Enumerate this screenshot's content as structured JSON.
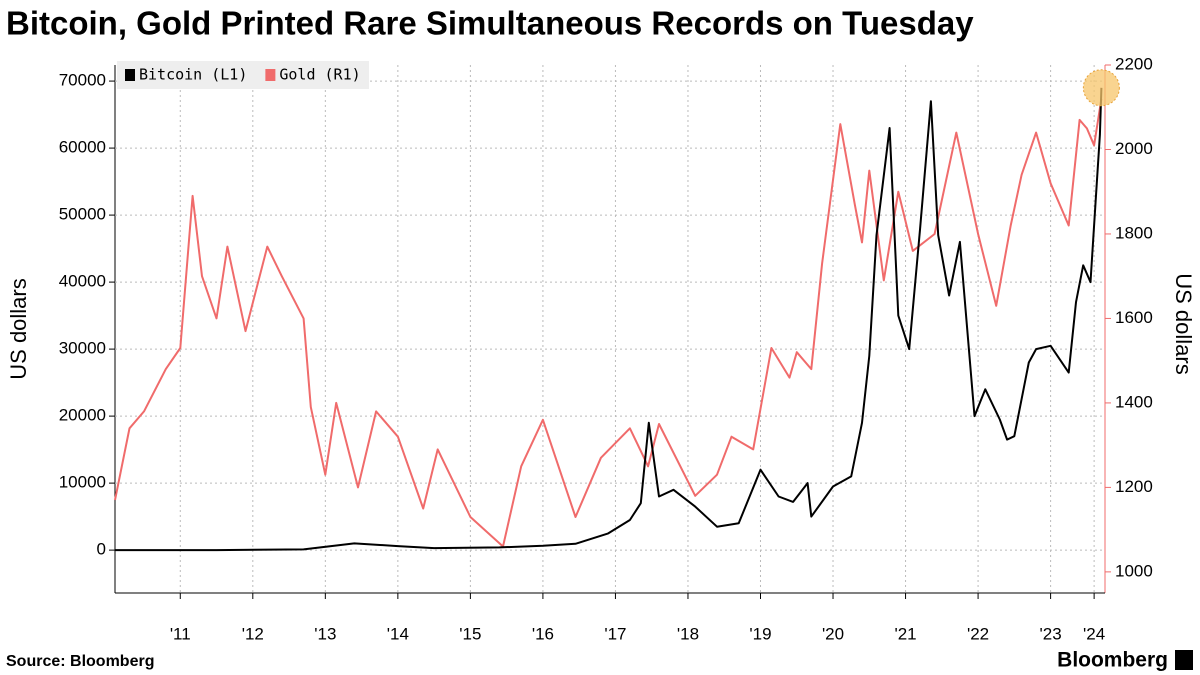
{
  "chart_data": {
    "type": "line",
    "title": "Bitcoin, Gold Printed Rare Simultaneous Records on Tuesday",
    "ylabel": "US dollars",
    "y2label": "US dollars",
    "source": "Source: Bloomberg",
    "brand": "Bloomberg",
    "legend": "top-left",
    "grid": true,
    "xlim": [
      2010.6,
      2024.25
    ],
    "xticks": [
      {
        "value": 2011.5,
        "label": "'11"
      },
      {
        "value": 2012.5,
        "label": "'12"
      },
      {
        "value": 2013.5,
        "label": "'13"
      },
      {
        "value": 2014.5,
        "label": "'14"
      },
      {
        "value": 2015.5,
        "label": "'15"
      },
      {
        "value": 2016.5,
        "label": "'16"
      },
      {
        "value": 2017.5,
        "label": "'17"
      },
      {
        "value": 2018.5,
        "label": "'18"
      },
      {
        "value": 2019.5,
        "label": "'19"
      },
      {
        "value": 2020.5,
        "label": "'20"
      },
      {
        "value": 2021.5,
        "label": "'21"
      },
      {
        "value": 2022.5,
        "label": "'22"
      },
      {
        "value": 2023.5,
        "label": "'23"
      },
      {
        "value": 2024.1,
        "label": "'24"
      }
    ],
    "ylim": [
      -6400,
      72400
    ],
    "yticks": [
      0,
      10000,
      20000,
      30000,
      40000,
      50000,
      60000,
      70000
    ],
    "y2lim": [
      950,
      2200
    ],
    "y2ticks": [
      1000,
      1200,
      1400,
      1600,
      1800,
      2000,
      2200
    ],
    "series": [
      {
        "name": "Bitcoin (L1)",
        "color": "#000000",
        "axis": "y",
        "x": [
          2010.6,
          2012.0,
          2013.2,
          2013.9,
          2014.5,
          2015.0,
          2015.9,
          2016.5,
          2016.95,
          2017.4,
          2017.7,
          2017.85,
          2017.96,
          2018.1,
          2018.3,
          2018.6,
          2018.9,
          2019.2,
          2019.5,
          2019.75,
          2019.95,
          2020.15,
          2020.2,
          2020.5,
          2020.75,
          2020.9,
          2021.0,
          2021.1,
          2021.28,
          2021.4,
          2021.55,
          2021.7,
          2021.85,
          2021.95,
          2022.1,
          2022.25,
          2022.45,
          2022.6,
          2022.8,
          2022.9,
          2023.0,
          2023.2,
          2023.3,
          2023.5,
          2023.75,
          2023.85,
          2023.95,
          2024.05,
          2024.12,
          2024.18,
          2024.2
        ],
        "values": [
          0,
          5,
          100,
          1000,
          600,
          300,
          400,
          650,
          950,
          2500,
          4500,
          7000,
          19000,
          8000,
          9000,
          6500,
          3500,
          4000,
          12000,
          8000,
          7200,
          10000,
          5000,
          9500,
          11000,
          19000,
          29000,
          47000,
          63000,
          35000,
          30000,
          48000,
          67000,
          47000,
          38000,
          46000,
          20000,
          24000,
          19500,
          16500,
          17000,
          28000,
          30000,
          30500,
          26500,
          37000,
          42500,
          40000,
          52000,
          62000,
          69000
        ]
      },
      {
        "name": "Gold (R1)",
        "color": "#f06b6b",
        "axis": "y2",
        "x": [
          2010.6,
          2010.8,
          2011.0,
          2011.3,
          2011.5,
          2011.67,
          2011.8,
          2012.0,
          2012.15,
          2012.4,
          2012.7,
          2012.9,
          2013.2,
          2013.3,
          2013.5,
          2013.65,
          2013.95,
          2014.2,
          2014.5,
          2014.85,
          2015.05,
          2015.5,
          2015.95,
          2016.2,
          2016.5,
          2016.95,
          2017.3,
          2017.7,
          2017.95,
          2018.1,
          2018.6,
          2018.9,
          2019.1,
          2019.4,
          2019.65,
          2019.9,
          2020.0,
          2020.2,
          2020.35,
          2020.6,
          2020.8,
          2020.9,
          2021.0,
          2021.2,
          2021.4,
          2021.6,
          2021.9,
          2022.2,
          2022.5,
          2022.75,
          2022.95,
          2023.1,
          2023.3,
          2023.5,
          2023.75,
          2023.9,
          2024.0,
          2024.1,
          2024.2
        ],
        "values": [
          1170,
          1340,
          1380,
          1480,
          1530,
          1890,
          1700,
          1600,
          1770,
          1570,
          1770,
          1700,
          1600,
          1390,
          1230,
          1400,
          1200,
          1380,
          1320,
          1150,
          1290,
          1130,
          1060,
          1250,
          1360,
          1130,
          1270,
          1340,
          1250,
          1350,
          1180,
          1230,
          1320,
          1290,
          1530,
          1460,
          1520,
          1480,
          1730,
          2060,
          1870,
          1780,
          1950,
          1690,
          1900,
          1760,
          1800,
          2040,
          1800,
          1630,
          1820,
          1940,
          2040,
          1920,
          1820,
          2070,
          2050,
          2010,
          2120
        ]
      }
    ]
  }
}
